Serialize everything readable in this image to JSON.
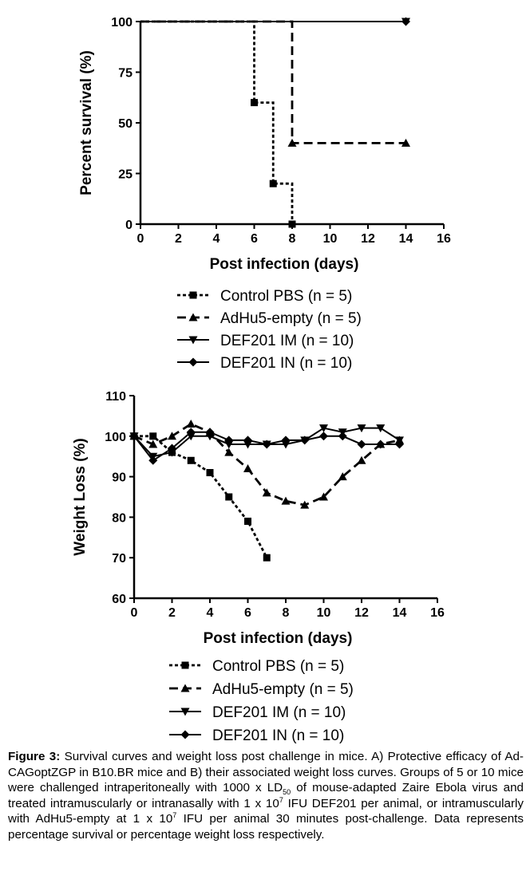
{
  "chart_data": [
    {
      "type": "line",
      "panel": "A",
      "xlabel": "Post infection (days)",
      "ylabel": "Percent survival  (%)",
      "xlim": [
        0,
        16
      ],
      "ylim": [
        0,
        100
      ],
      "xticks": [
        "0",
        "2",
        "4",
        "6",
        "8",
        "10",
        "12",
        "14",
        "16"
      ],
      "yticks": [
        "0",
        "25",
        "50",
        "75",
        "100"
      ],
      "step": true,
      "grid": false,
      "legend_position": "below",
      "series": [
        {
          "name": "Control PBS (n = 5)",
          "marker": "square",
          "dash": "dotted",
          "x": [
            0,
            6,
            7,
            8
          ],
          "y": [
            100,
            60,
            20,
            0
          ]
        },
        {
          "name": "AdHu5-empty (n = 5)",
          "marker": "triangle-up",
          "dash": "dashed",
          "x": [
            0,
            8,
            14
          ],
          "y": [
            100,
            40,
            40
          ]
        },
        {
          "name": "DEF201 IM (n = 10)",
          "marker": "triangle-down",
          "dash": "solid",
          "x": [
            0,
            14
          ],
          "y": [
            100,
            100
          ]
        },
        {
          "name": "DEF201 IN (n = 10)",
          "marker": "diamond",
          "dash": "solid",
          "x": [
            0,
            14
          ],
          "y": [
            100,
            100
          ]
        }
      ]
    },
    {
      "type": "line",
      "panel": "B",
      "xlabel": "Post infection (days)",
      "ylabel": "Weight Loss (%)",
      "xlim": [
        0,
        16
      ],
      "ylim": [
        60,
        110
      ],
      "xticks": [
        "0",
        "2",
        "4",
        "6",
        "8",
        "10",
        "12",
        "14",
        "16"
      ],
      "yticks": [
        "60",
        "70",
        "80",
        "90",
        "100",
        "110"
      ],
      "step": false,
      "grid": false,
      "legend_position": "below",
      "series": [
        {
          "name": "Control PBS (n = 5)",
          "marker": "square",
          "dash": "dotted",
          "x": [
            0,
            1,
            2,
            3,
            4,
            5,
            6,
            7
          ],
          "y": [
            100,
            100,
            96,
            94,
            91,
            85,
            79,
            70
          ]
        },
        {
          "name": "AdHu5-empty (n = 5)",
          "marker": "triangle-up",
          "dash": "dashed",
          "x": [
            0,
            1,
            2,
            3,
            4,
            5,
            6,
            7,
            8,
            9,
            10,
            11,
            12,
            13,
            14
          ],
          "y": [
            100,
            98,
            100,
            103,
            101,
            96,
            92,
            86,
            84,
            83,
            85,
            90,
            94,
            98,
            99
          ]
        },
        {
          "name": "DEF201 IM (n = 10)",
          "marker": "triangle-down",
          "dash": "solid",
          "x": [
            0,
            1,
            2,
            3,
            4,
            5,
            6,
            7,
            8,
            9,
            10,
            11,
            12,
            13,
            14
          ],
          "y": [
            100,
            95,
            96,
            100,
            100,
            98,
            98,
            98,
            98,
            99,
            102,
            101,
            102,
            102,
            99
          ]
        },
        {
          "name": "DEF201 IN (n = 10)",
          "marker": "diamond",
          "dash": "solid",
          "x": [
            0,
            1,
            2,
            3,
            4,
            5,
            6,
            7,
            8,
            9,
            10,
            11,
            12,
            13,
            14
          ],
          "y": [
            100,
            94,
            97,
            101,
            101,
            99,
            99,
            98,
            99,
            99,
            100,
            100,
            98,
            98,
            98
          ]
        }
      ]
    }
  ],
  "caption": {
    "label": "Figure 3:",
    "p1": " Survival curves and weight loss post challenge in mice. A) Protective efficacy of Ad-CAGoptZGP in B10.BR mice and B) their associated weight loss curves.  Groups of 5 or 10 mice were challenged intraperitoneally with 1000 x LD",
    "sub": "50",
    "p2": " of mouse-adapted Zaire Ebola virus and treated intramuscularly or intranasally with 1 x 10",
    "sup1": "7",
    "p3": " IFU DEF201 per animal, or intramuscularly with AdHu5-empty at 1 x 10",
    "sup2": "7",
    "p4": " IFU per animal 30 minutes post-challenge.  Data represents percentage survival or percentage weight loss respectively."
  }
}
